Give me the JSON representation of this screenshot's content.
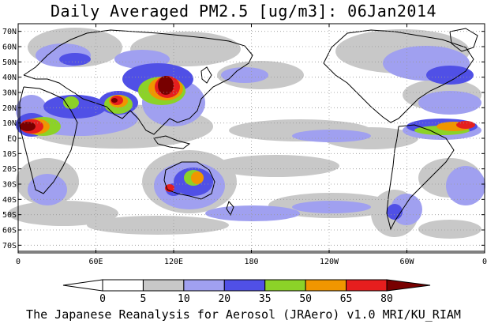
{
  "title": "Daily Averaged PM2.5 [ug/m3]: 06Jan2014",
  "footer": "The Japanese Reanalysis for Aerosol (JRAero) v1.0 MRI/KU_RIAM",
  "lat_labels": [
    "70N",
    "60N",
    "50N",
    "40N",
    "30N",
    "20N",
    "10N",
    "EQ",
    "10S",
    "20S",
    "30S",
    "40S",
    "50S",
    "60S",
    "70S"
  ],
  "lon_labels": [
    "0",
    "60E",
    "120E",
    "180",
    "120W",
    "60W",
    "0"
  ],
  "colorbar": {
    "levels": [
      "0",
      "5",
      "10",
      "20",
      "35",
      "50",
      "65",
      "80"
    ],
    "colors": [
      "#ffffff",
      "#c8c8c8",
      "#a0a0f0",
      "#5050e6",
      "#8cd228",
      "#f09600",
      "#e61e1e",
      "#780000"
    ]
  },
  "colors": {
    "background": "#ffffff",
    "coastline": "#000000",
    "gridline": "#999999"
  }
}
